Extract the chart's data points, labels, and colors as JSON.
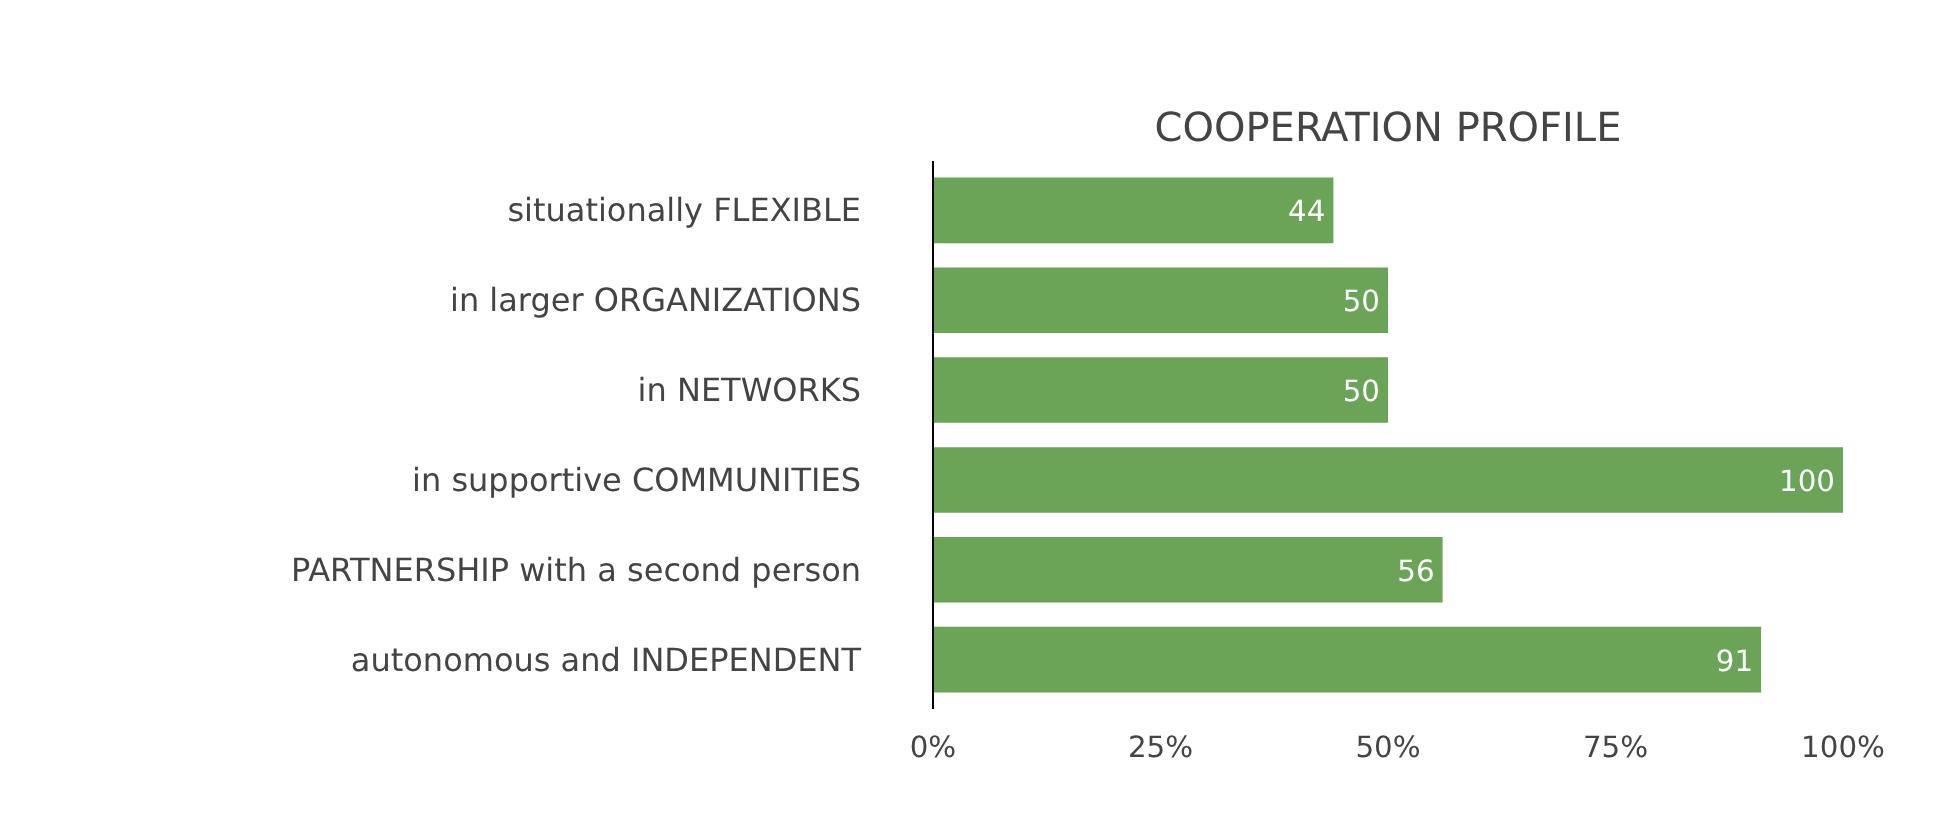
{
  "chart_data": {
    "type": "bar",
    "orientation": "horizontal",
    "title": "COOPERATION PROFILE",
    "categories": [
      "situationally FLEXIBLE",
      "in larger ORGANIZATIONS",
      "in NETWORKS",
      "in supportive COMMUNITIES",
      "PARTNERSHIP with a second person",
      "autonomous and INDEPENDENT"
    ],
    "values": [
      44,
      50,
      50,
      100,
      56,
      91
    ],
    "color": "#6aa456",
    "data_labels": true,
    "xlim": [
      0,
      100
    ],
    "xticks": [
      {
        "value": 0,
        "label": "0%"
      },
      {
        "value": 25,
        "label": "25%"
      },
      {
        "value": 50,
        "label": "50%"
      },
      {
        "value": 75,
        "label": "75%"
      },
      {
        "value": 100,
        "label": "100%"
      }
    ],
    "grid": false
  }
}
